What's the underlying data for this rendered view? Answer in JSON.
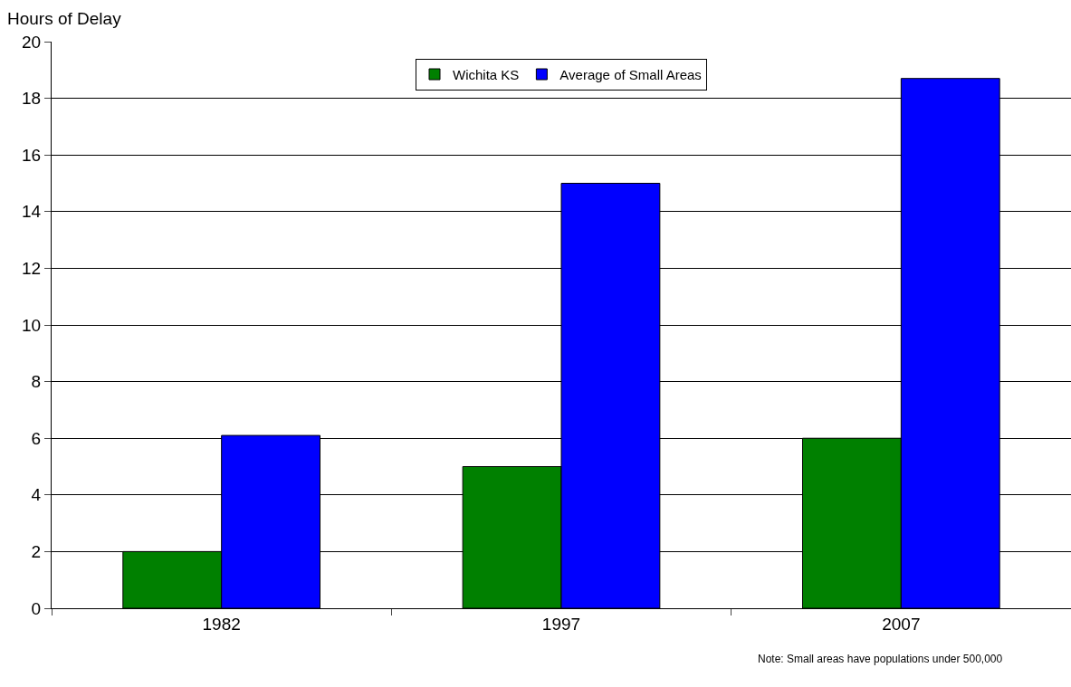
{
  "chart_data": {
    "type": "bar",
    "ylabel": "Hours of Delay",
    "categories": [
      "1982",
      "1997",
      "2007"
    ],
    "series": [
      {
        "name": "Wichita KS",
        "color": "#008000",
        "values": [
          2,
          5,
          6
        ]
      },
      {
        "name": "Average of Small Areas",
        "color": "#0000ff",
        "values": [
          6.1,
          15,
          18.7
        ]
      }
    ],
    "ylim": [
      0,
      20
    ],
    "yticks": [
      0,
      2,
      4,
      6,
      8,
      10,
      12,
      14,
      16,
      18,
      20
    ],
    "grid": "y",
    "legend": "top",
    "annotations": [
      "Note: Small areas have populations under 500,000"
    ]
  }
}
